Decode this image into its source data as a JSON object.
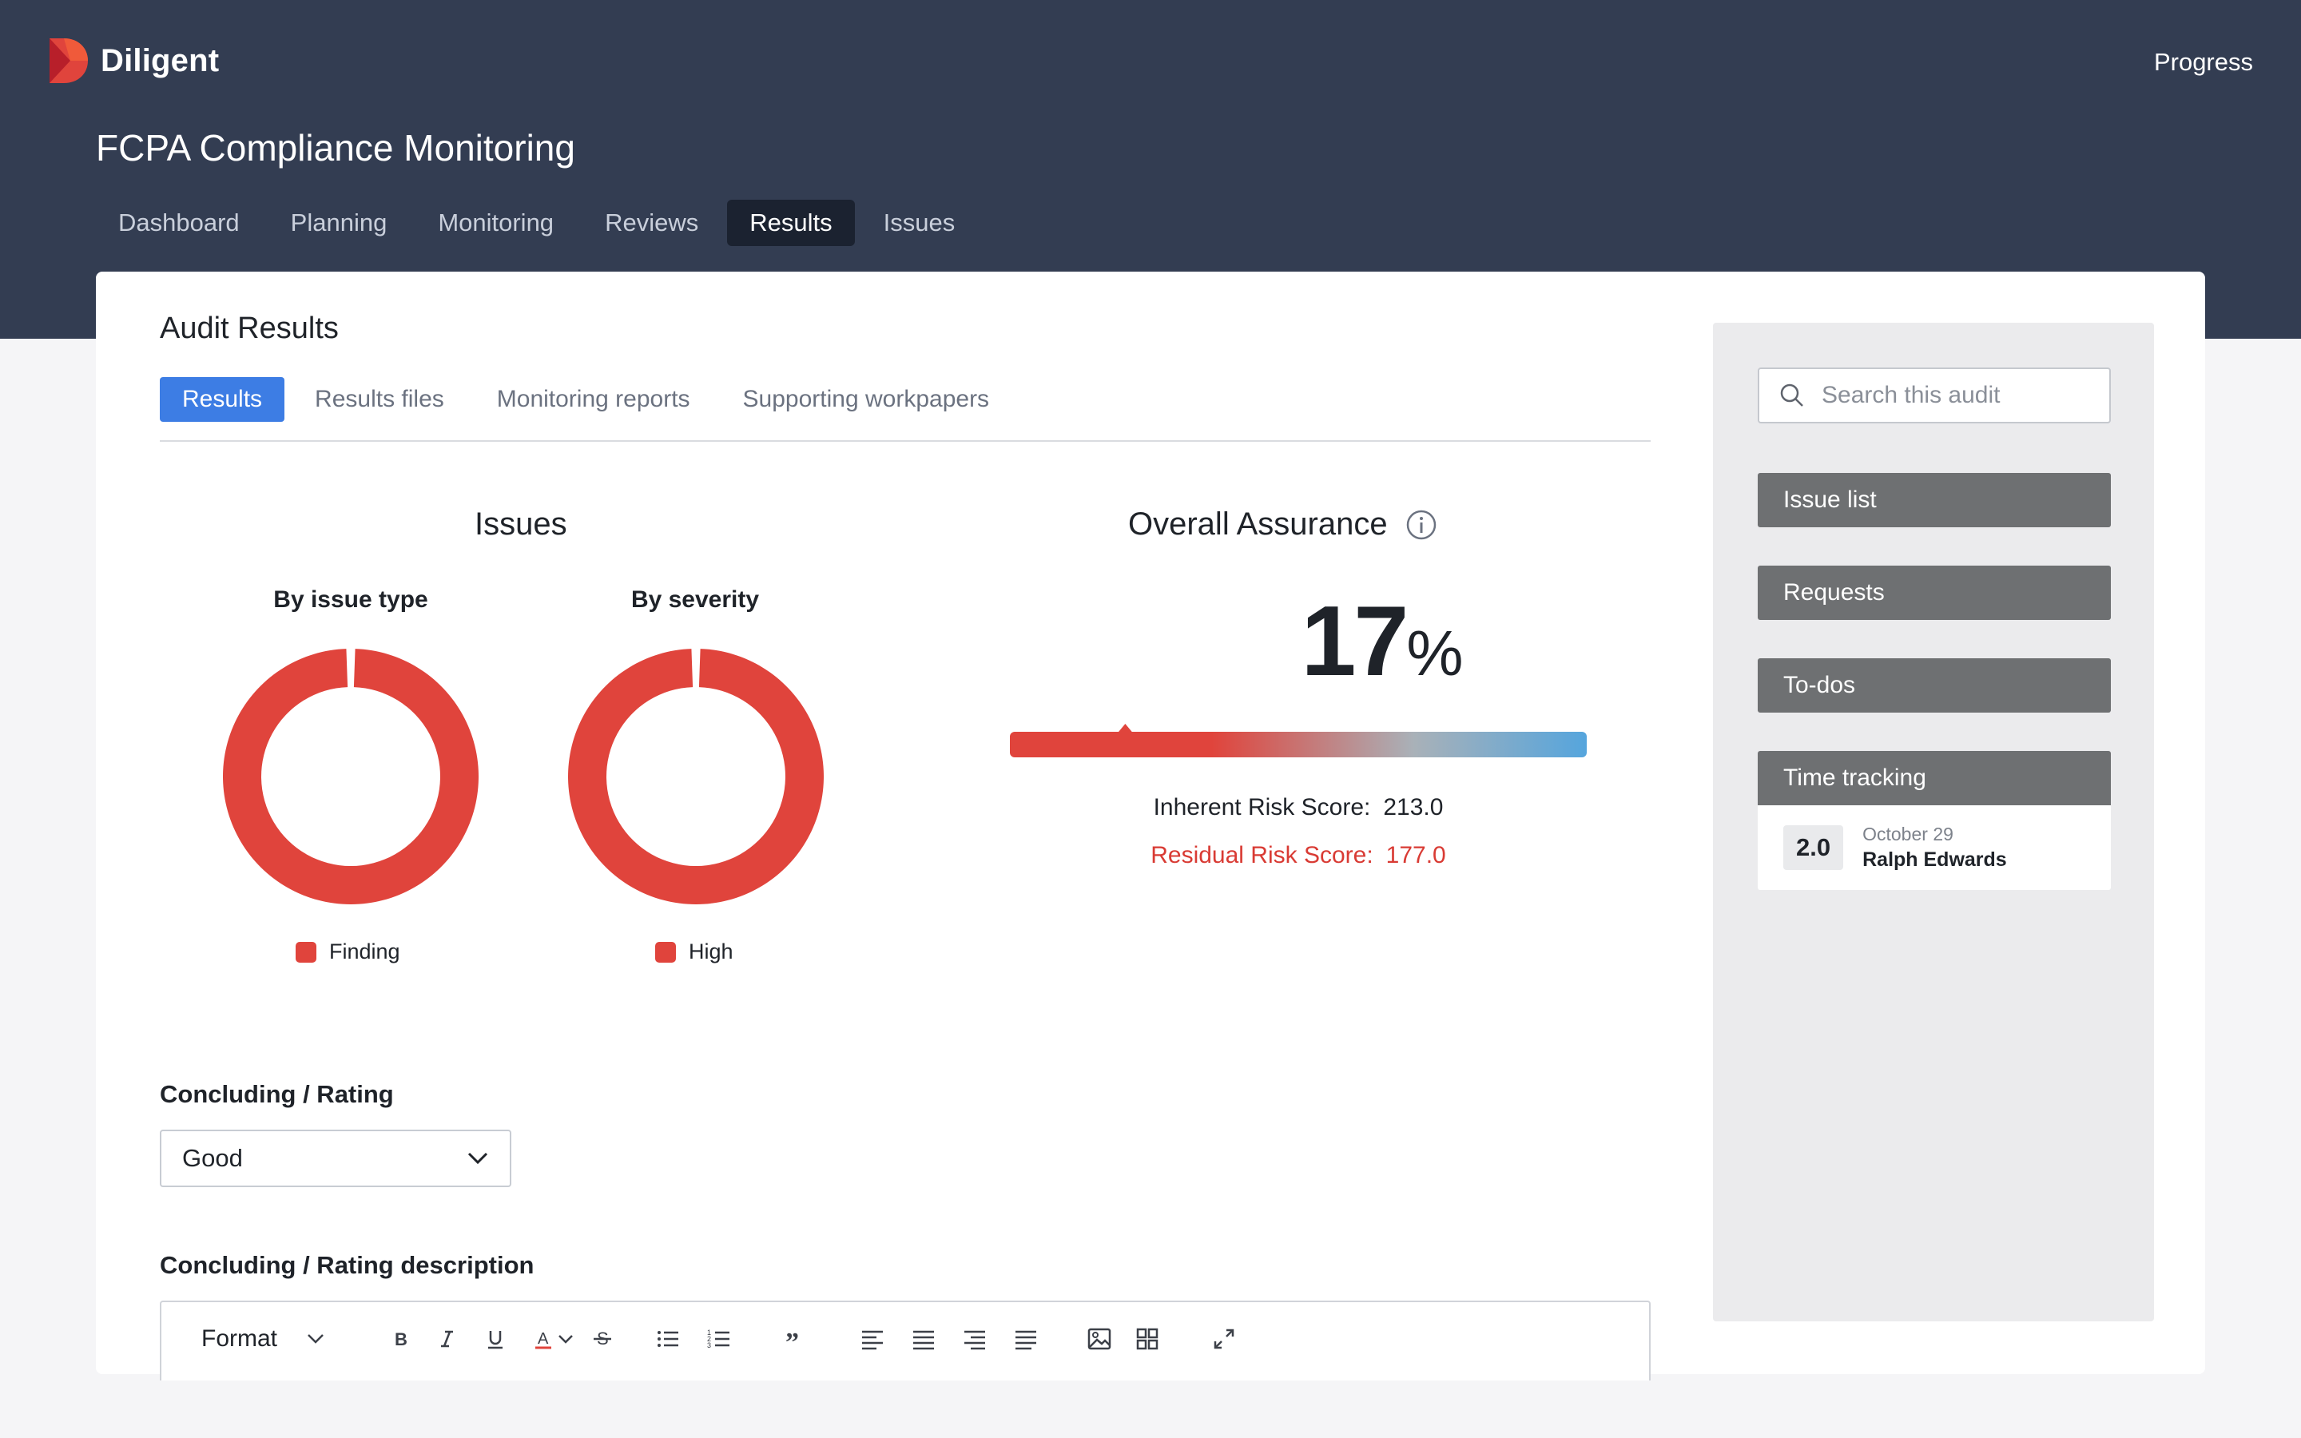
{
  "brand": {
    "name": "Diligent",
    "accent": "#e0443c"
  },
  "header": {
    "progress_label": "Progress",
    "title": "FCPA Compliance Monitoring"
  },
  "main_nav": {
    "items": [
      {
        "label": "Dashboard"
      },
      {
        "label": "Planning"
      },
      {
        "label": "Monitoring"
      },
      {
        "label": "Reviews"
      },
      {
        "label": "Results"
      },
      {
        "label": "Issues"
      }
    ],
    "active": "Results"
  },
  "results": {
    "section_title": "Audit Results",
    "tabs": [
      {
        "label": "Results"
      },
      {
        "label": "Results files"
      },
      {
        "label": "Monitoring reports"
      },
      {
        "label": "Supporting workpapers"
      }
    ],
    "active_tab": "Results"
  },
  "issues": {
    "title": "Issues",
    "by_type": {
      "label": "By issue type",
      "legend": "Finding",
      "color": "#e0443c"
    },
    "by_severity": {
      "label": "By severity",
      "legend": "High",
      "color": "#e0443c"
    }
  },
  "chart_data": [
    {
      "type": "pie",
      "title": "By issue type",
      "categories": [
        "Finding"
      ],
      "values": [
        1
      ],
      "colors": [
        "#e0443c"
      ]
    },
    {
      "type": "pie",
      "title": "By severity",
      "categories": [
        "High"
      ],
      "values": [
        1
      ],
      "colors": [
        "#e0443c"
      ]
    }
  ],
  "assurance": {
    "title": "Overall Assurance",
    "info_icon": "info-icon",
    "percent_value": "17",
    "percent_sign": "%",
    "gauge_level": 0.2,
    "gauge_colors": [
      "#e0443c",
      "#a9b1b8",
      "#55a5dd"
    ],
    "inherent_label": "Inherent Risk Score:",
    "inherent_value": "213.0",
    "residual_label": "Residual Risk Score:",
    "residual_value": "177.0"
  },
  "concluding": {
    "rating_label": "Concluding / Rating",
    "rating_value": "Good",
    "description_label": "Concluding / Rating description",
    "toolbar_format": "Format"
  },
  "sidebar": {
    "search_placeholder": "Search this audit",
    "buttons": [
      {
        "label": "Issue list"
      },
      {
        "label": "Requests"
      },
      {
        "label": "To-dos"
      },
      {
        "label": "Time tracking"
      }
    ],
    "time_entry": {
      "hours": "2.0",
      "date": "October 29",
      "user": "Ralph Edwards"
    }
  }
}
